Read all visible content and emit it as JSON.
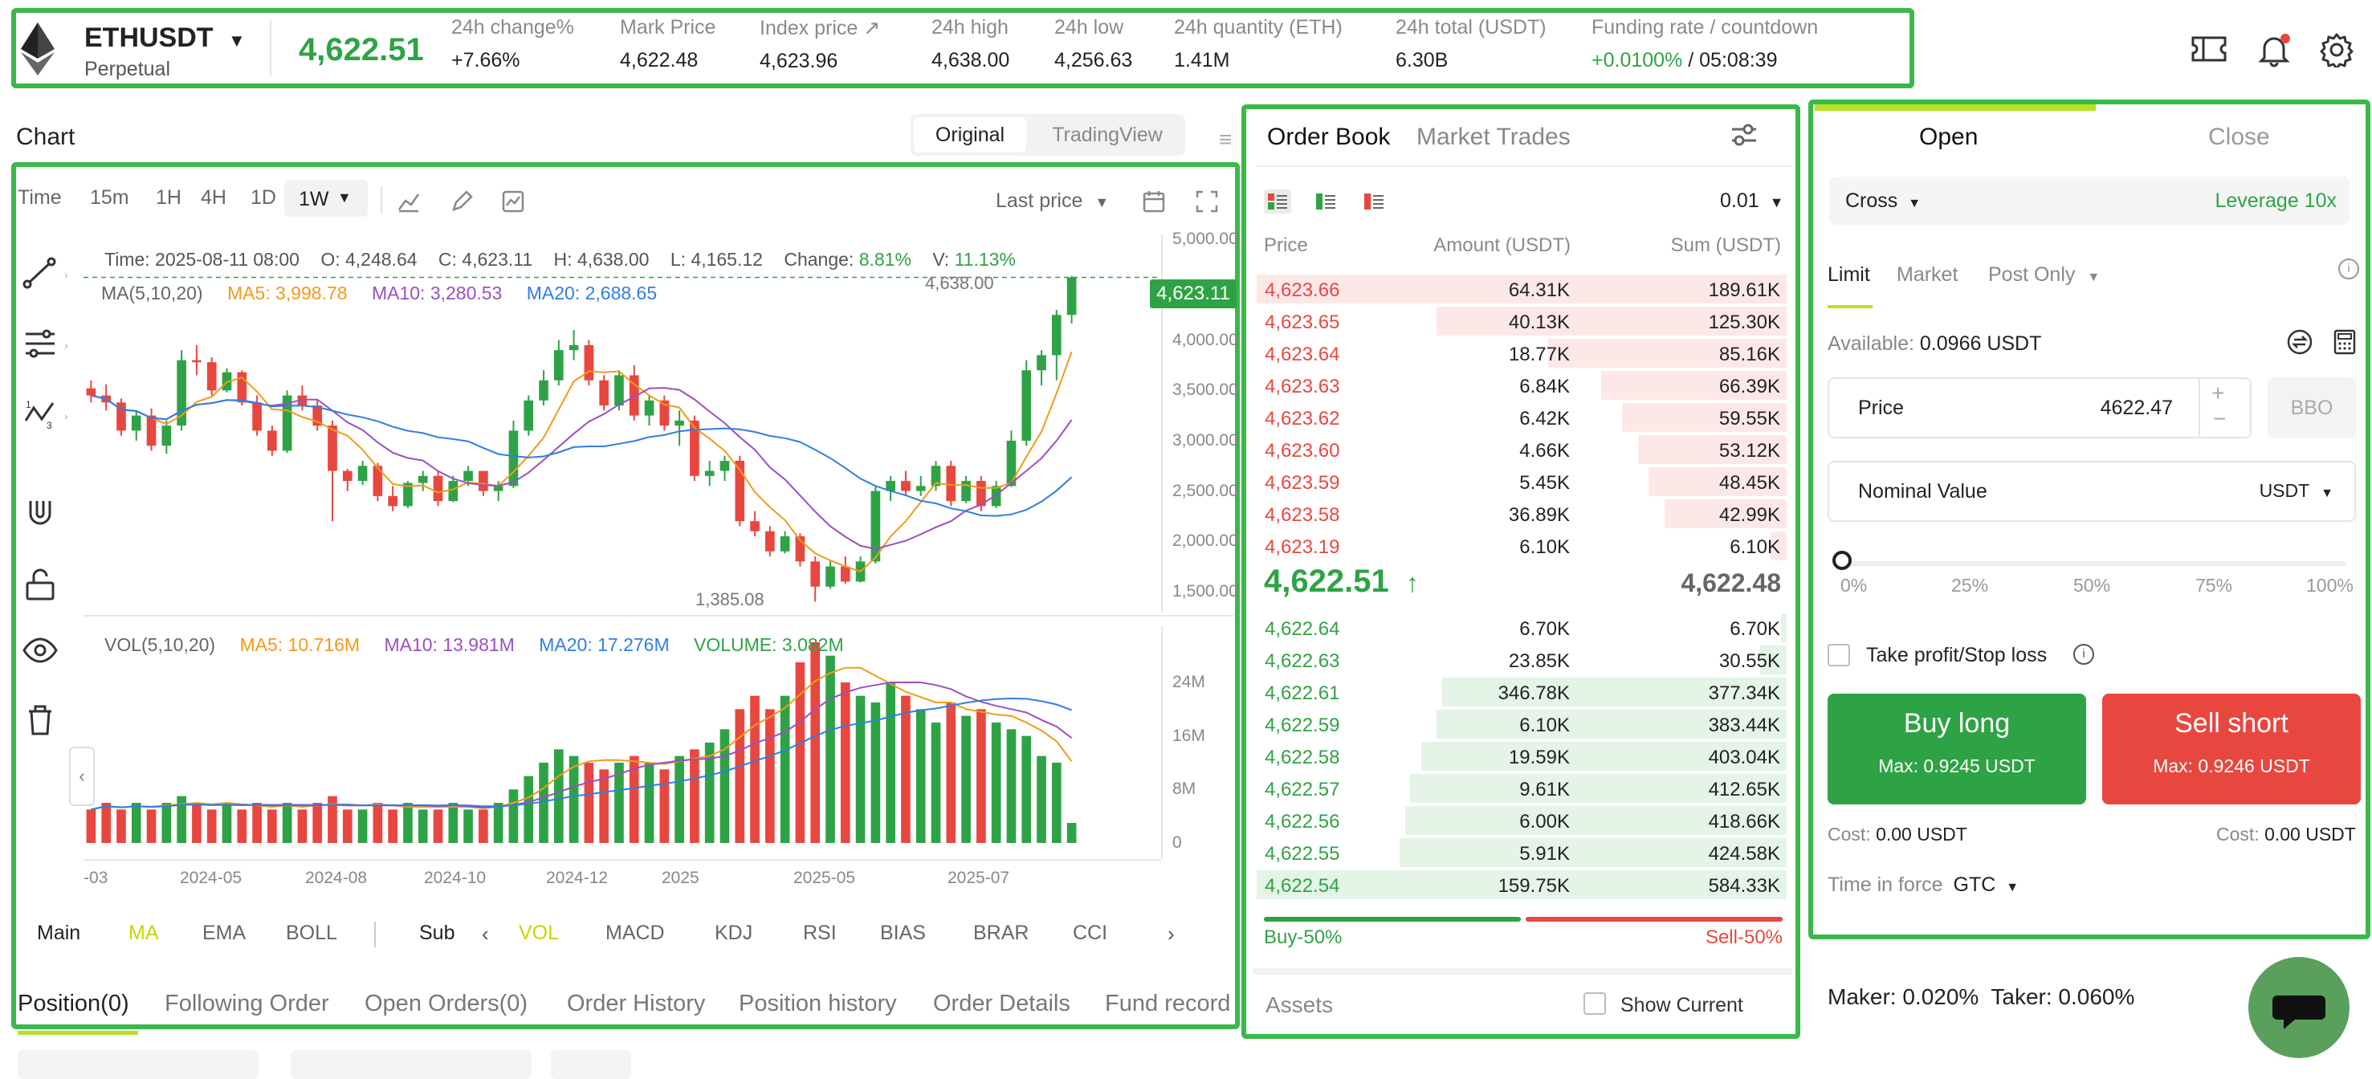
{
  "header": {
    "symbol": "ETHUSDT",
    "contract": "Perpetual",
    "last_price": "4,622.51",
    "stats": [
      {
        "label": "24h change%",
        "value": "+7.66%",
        "color": "green"
      },
      {
        "label": "Mark Price",
        "value": "4,622.48",
        "color": "green"
      },
      {
        "label": "Index price",
        "value": "4,623.96",
        "color": "dark"
      },
      {
        "label": "24h high",
        "value": "4,638.00",
        "color": "dark"
      },
      {
        "label": "24h low",
        "value": "4,256.63",
        "color": "dark"
      },
      {
        "label": "24h quantity (ETH)",
        "value": "1.41M",
        "color": "dark"
      },
      {
        "label": "24h total (USDT)",
        "value": "6.30B",
        "color": "dark"
      }
    ],
    "funding_label": "Funding rate / countdown",
    "funding_rate": "+0.0100%",
    "funding_sep": "/",
    "countdown": "05:08:39"
  },
  "chart": {
    "title": "Chart",
    "view_tabs": [
      "Original",
      "TradingView"
    ],
    "timeframes": [
      "Time",
      "15m",
      "1H",
      "4H",
      "1D"
    ],
    "active_timeframe": "1W",
    "price_type": "Last price",
    "ohlc": {
      "time": "Time: 2025-08-11 08:00",
      "open": "O: 4,248.64",
      "close": "C: 4,623.11",
      "high": "H: 4,638.00",
      "low": "L: 4,165.12",
      "change_label": "Change:",
      "change": "8.81%",
      "vol_label": "V:",
      "vol": "11.13%"
    },
    "ma_legend": {
      "label": "MA(5,10,20)",
      "ma5": "MA5: 3,998.78",
      "ma10": "MA10: 3,280.53",
      "ma20": "MA20: 2,688.65"
    },
    "high_marker": "4,638.00",
    "low_marker": "1,385.08",
    "current_price_tag": "4,623.11",
    "price_axis": [
      "5,000.00",
      "4,500.00",
      "4,000.00",
      "3,500.00",
      "3,000.00",
      "2,500.00",
      "2,000.00",
      "1,500.00"
    ],
    "vol_legend": {
      "label": "VOL(5,10,20)",
      "ma5": "MA5: 10.716M",
      "ma10": "MA10: 13.981M",
      "ma20": "MA20: 17.276M",
      "volume": "VOLUME: 3.082M"
    },
    "vol_axis": [
      "24M",
      "16M",
      "8M",
      "0"
    ],
    "date_axis": [
      "-03",
      "2024-05",
      "2024-08",
      "2024-10",
      "2024-12",
      "2025",
      "2025-05",
      "2025-07"
    ],
    "indicators_main_label": "Main",
    "indicators_main": [
      "MA",
      "EMA",
      "BOLL"
    ],
    "indicators_sub_label": "Sub",
    "indicators_sub": [
      "VOL",
      "MACD",
      "KDJ",
      "RSI",
      "BIAS",
      "BRAR",
      "CCI"
    ]
  },
  "chart_data": {
    "type": "candlestick",
    "x": [
      "2024-03",
      "2024-03",
      "2024-04",
      "2024-04",
      "2024-04",
      "2024-05",
      "2024-05",
      "2024-05",
      "2024-05",
      "2024-06",
      "2024-06",
      "2024-06",
      "2024-07",
      "2024-07",
      "2024-07",
      "2024-07",
      "2024-08",
      "2024-08",
      "2024-08",
      "2024-08",
      "2024-09",
      "2024-09",
      "2024-09",
      "2024-09",
      "2024-10",
      "2024-10",
      "2024-10",
      "2024-10",
      "2024-11",
      "2024-11",
      "2024-11",
      "2024-11",
      "2024-12",
      "2024-12",
      "2024-12",
      "2024-12",
      "2025-01",
      "2025-01",
      "2025-01",
      "2025-01",
      "2025-02",
      "2025-02",
      "2025-02",
      "2025-02",
      "2025-03",
      "2025-03",
      "2025-03",
      "2025-03",
      "2025-04",
      "2025-04",
      "2025-04",
      "2025-04",
      "2025-05",
      "2025-05",
      "2025-05",
      "2025-05",
      "2025-06",
      "2025-06",
      "2025-06",
      "2025-06",
      "2025-07",
      "2025-07",
      "2025-07",
      "2025-07",
      "2025-08",
      "2025-08"
    ],
    "ohlc": [
      [
        3520,
        3600,
        3380,
        3450
      ],
      [
        3450,
        3560,
        3300,
        3380
      ],
      [
        3380,
        3420,
        3050,
        3100
      ],
      [
        3100,
        3300,
        3000,
        3250
      ],
      [
        3250,
        3320,
        2900,
        2950
      ],
      [
        2950,
        3200,
        2870,
        3150
      ],
      [
        3150,
        3900,
        3100,
        3800
      ],
      [
        3800,
        3950,
        3650,
        3780
      ],
      [
        3780,
        3830,
        3450,
        3500
      ],
      [
        3500,
        3720,
        3480,
        3680
      ],
      [
        3680,
        3700,
        3350,
        3380
      ],
      [
        3380,
        3450,
        3050,
        3100
      ],
      [
        3100,
        3150,
        2850,
        2900
      ],
      [
        2900,
        3500,
        2880,
        3450
      ],
      [
        3450,
        3550,
        3300,
        3350
      ],
      [
        3350,
        3400,
        3100,
        3150
      ],
      [
        3150,
        3200,
        2200,
        2700
      ],
      [
        2700,
        2720,
        2500,
        2600
      ],
      [
        2600,
        2800,
        2560,
        2750
      ],
      [
        2750,
        2780,
        2400,
        2450
      ],
      [
        2450,
        2550,
        2300,
        2350
      ],
      [
        2350,
        2600,
        2330,
        2580
      ],
      [
        2580,
        2700,
        2500,
        2650
      ],
      [
        2650,
        2700,
        2350,
        2400
      ],
      [
        2400,
        2650,
        2390,
        2600
      ],
      [
        2600,
        2750,
        2550,
        2700
      ],
      [
        2700,
        2700,
        2450,
        2500
      ],
      [
        2500,
        2600,
        2400,
        2550
      ],
      [
        2550,
        3200,
        2530,
        3100
      ],
      [
        3100,
        3450,
        3050,
        3400
      ],
      [
        3400,
        3700,
        3350,
        3600
      ],
      [
        3600,
        4000,
        3550,
        3900
      ],
      [
        3900,
        4100,
        3800,
        3950
      ],
      [
        3950,
        4000,
        3550,
        3600
      ],
      [
        3600,
        3650,
        3300,
        3350
      ],
      [
        3350,
        3700,
        3300,
        3650
      ],
      [
        3650,
        3750,
        3200,
        3250
      ],
      [
        3250,
        3450,
        3150,
        3400
      ],
      [
        3400,
        3450,
        3100,
        3150
      ],
      [
        3150,
        3300,
        2950,
        3200
      ],
      [
        3200,
        3250,
        2600,
        2650
      ],
      [
        2650,
        2800,
        2550,
        2700
      ],
      [
        2700,
        2850,
        2600,
        2800
      ],
      [
        2800,
        2850,
        2150,
        2200
      ],
      [
        2200,
        2300,
        2050,
        2100
      ],
      [
        2100,
        2150,
        1850,
        1900
      ],
      [
        1900,
        2100,
        1880,
        2050
      ],
      [
        2050,
        2080,
        1750,
        1800
      ],
      [
        1800,
        1850,
        1400,
        1550
      ],
      [
        1550,
        1800,
        1530,
        1750
      ],
      [
        1750,
        1850,
        1580,
        1600
      ],
      [
        1600,
        1850,
        1590,
        1800
      ],
      [
        1800,
        2550,
        1780,
        2500
      ],
      [
        2500,
        2650,
        2400,
        2600
      ],
      [
        2600,
        2700,
        2450,
        2500
      ],
      [
        2500,
        2650,
        2450,
        2550
      ],
      [
        2550,
        2800,
        2500,
        2750
      ],
      [
        2750,
        2800,
        2350,
        2400
      ],
      [
        2400,
        2650,
        2380,
        2600
      ],
      [
        2600,
        2650,
        2300,
        2350
      ],
      [
        2350,
        2600,
        2330,
        2550
      ],
      [
        2550,
        3100,
        2540,
        3000
      ],
      [
        3000,
        3800,
        2950,
        3700
      ],
      [
        3700,
        3900,
        3550,
        3850
      ],
      [
        3850,
        4300,
        3600,
        4250
      ],
      [
        4250,
        4638,
        4165,
        4623
      ]
    ],
    "volume_M": [
      5,
      6,
      5,
      6,
      5,
      6,
      7,
      6,
      5,
      6,
      5,
      6,
      5,
      6,
      5,
      6,
      7,
      5,
      5,
      6,
      5,
      6,
      5,
      5,
      6,
      5,
      5,
      6,
      8,
      10,
      12,
      14,
      13,
      12,
      11,
      12,
      13,
      12,
      11,
      13,
      14,
      15,
      17,
      20,
      22,
      20,
      22,
      27,
      30,
      28,
      24,
      22,
      21,
      24,
      22,
      20,
      18,
      21,
      19,
      20,
      18,
      17,
      16,
      13,
      12,
      3
    ],
    "ylim": [
      1300,
      5050
    ],
    "vol_ylim": [
      0,
      30
    ]
  },
  "orderbook": {
    "tabs": [
      "Order Book",
      "Market Trades"
    ],
    "precision": "0.01",
    "col_headers": [
      "Price",
      "Amount (USDT)",
      "Sum (USDT)"
    ],
    "asks": [
      {
        "price": "4,623.66",
        "amount": "64.31K",
        "sum": "189.61K",
        "depth": 1.0
      },
      {
        "price": "4,623.65",
        "amount": "40.13K",
        "sum": "125.30K",
        "depth": 0.66
      },
      {
        "price": "4,623.64",
        "amount": "18.77K",
        "sum": "85.16K",
        "depth": 0.45
      },
      {
        "price": "4,623.63",
        "amount": "6.84K",
        "sum": "66.39K",
        "depth": 0.35
      },
      {
        "price": "4,623.62",
        "amount": "6.42K",
        "sum": "59.55K",
        "depth": 0.31
      },
      {
        "price": "4,623.60",
        "amount": "4.66K",
        "sum": "53.12K",
        "depth": 0.28
      },
      {
        "price": "4,623.59",
        "amount": "5.45K",
        "sum": "48.45K",
        "depth": 0.26
      },
      {
        "price": "4,623.58",
        "amount": "36.89K",
        "sum": "42.99K",
        "depth": 0.23
      },
      {
        "price": "4,623.19",
        "amount": "6.10K",
        "sum": "6.10K",
        "depth": 0.03
      }
    ],
    "mid_price": "4,622.51",
    "mark_price": "4,622.48",
    "bids": [
      {
        "price": "4,622.64",
        "amount": "6.70K",
        "sum": "6.70K",
        "depth": 0.01
      },
      {
        "price": "4,622.63",
        "amount": "23.85K",
        "sum": "30.55K",
        "depth": 0.05
      },
      {
        "price": "4,622.61",
        "amount": "346.78K",
        "sum": "377.34K",
        "depth": 0.65
      },
      {
        "price": "4,622.59",
        "amount": "6.10K",
        "sum": "383.44K",
        "depth": 0.66
      },
      {
        "price": "4,622.58",
        "amount": "19.59K",
        "sum": "403.04K",
        "depth": 0.69
      },
      {
        "price": "4,622.57",
        "amount": "9.61K",
        "sum": "412.65K",
        "depth": 0.71
      },
      {
        "price": "4,622.56",
        "amount": "6.00K",
        "sum": "418.66K",
        "depth": 0.72
      },
      {
        "price": "4,622.55",
        "amount": "5.91K",
        "sum": "424.58K",
        "depth": 0.73
      },
      {
        "price": "4,622.54",
        "amount": "159.75K",
        "sum": "584.33K",
        "depth": 1.0
      }
    ],
    "buy_ratio": "Buy-50%",
    "sell_ratio": "Sell-50%",
    "assets_label": "Assets",
    "show_current": "Show Current"
  },
  "bottom_tabs": [
    "Position(0)",
    "Following Order",
    "Open Orders(0)",
    "Order History",
    "Position history",
    "Order Details",
    "Fund record"
  ],
  "trade": {
    "tabs": [
      "Open",
      "Close"
    ],
    "margin_mode": "Cross",
    "leverage": "Leverage 10x",
    "order_types": [
      "Limit",
      "Market",
      "Post Only"
    ],
    "available_label": "Available:",
    "available_value": "0.0966 USDT",
    "price_label": "Price",
    "price_value": "4622.47",
    "bbo": "BBO",
    "nominal_label": "Nominal Value",
    "nominal_unit": "USDT",
    "slider_marks": [
      "0%",
      "25%",
      "50%",
      "75%",
      "100%"
    ],
    "tpsl_label": "Take profit/Stop loss",
    "buy_label": "Buy long",
    "buy_max": "Max: 0.9245 USDT",
    "sell_label": "Sell short",
    "sell_max": "Max: 0.9246 USDT",
    "cost_label": "Cost:",
    "buy_cost": "0.00 USDT",
    "sell_cost": "0.00 USDT",
    "tif_label": "Time in force",
    "tif_value": "GTC",
    "fees": "Maker: 0.020%  Taker: 0.060%"
  },
  "colors": {
    "accent_green": "#2ea345",
    "accent_red": "#e8473f",
    "highlight_box": "#3bb84a",
    "lime": "#b6e21f"
  }
}
